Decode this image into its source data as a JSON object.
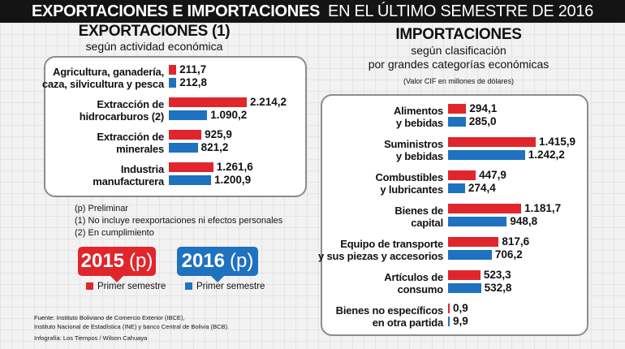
{
  "header": {
    "title_bold": "EXPORTACIONES  E IMPORTACIONES",
    "title_rest": "EN EL ÚLTIMO SEMESTRE DE 2016"
  },
  "exports": {
    "heading": "EXPORTACIONES (1)",
    "subheading": "según actividad económica"
  },
  "imports": {
    "heading": "IMPORTACIONES",
    "subheading1": "según clasificación",
    "subheading2": "por grandes categorías económicas",
    "note": "(Valor CIF en millones de dólares)"
  },
  "notes": [
    "(p) Preliminar",
    "(1) No incluye reexportaciones ni efectos personales",
    "(2) En cumplimiento"
  ],
  "legend": {
    "y2015": "2015",
    "y2016": "2016",
    "p": "(p)",
    "label": "Primer semestre",
    "color2015": "#e0262c",
    "color2016": "#1f72bf"
  },
  "sources": {
    "line1": "Fuente: Instituto Boliviano de Comercio Exterior (IBCE),",
    "line2": "Instituto Nacional de Estadística (INE) y banco Central de Bolivia (BCB).",
    "line3": "Infografía: Los Tiempos / Wilson Cahuaya"
  },
  "chart_data": [
    {
      "type": "bar",
      "title": "EXPORTACIONES (1)",
      "subtitle": "según actividad económica",
      "categories": [
        [
          "Agricultura, ganadería,",
          "caza, silvicultura y pesca"
        ],
        [
          "Extracción de",
          "hidrocarburos (2)"
        ],
        [
          "Extracción de",
          "minerales"
        ],
        [
          "Industria",
          "manufacturera"
        ]
      ],
      "series": [
        {
          "name": "2015 (p) Primer semestre",
          "color": "#e0262c",
          "values": [
            211.7,
            2214.2,
            925.9,
            1261.6
          ],
          "labels": [
            "211,7",
            "2.214,2",
            "925,9",
            "1.261,6"
          ]
        },
        {
          "name": "2016 (p) Primer semestre",
          "color": "#1f72bf",
          "values": [
            212.8,
            1090.2,
            821.2,
            1200.9
          ],
          "labels": [
            "212,8",
            "1.090,2",
            "821,2",
            "1.200,9"
          ]
        }
      ]
    },
    {
      "type": "bar",
      "title": "IMPORTACIONES",
      "subtitle": "según clasificación por grandes categorías económicas",
      "categories": [
        [
          "Alimentos",
          "y bebidas"
        ],
        [
          "Suministros",
          "y bebidas"
        ],
        [
          "Combustibles",
          "y lubricantes"
        ],
        [
          "Bienes de",
          "capital"
        ],
        [
          "Equipo de transporte",
          "y sus piezas y accesorios"
        ],
        [
          "Artículos de",
          "consumo"
        ],
        [
          "Bienes no específicos",
          "en otra partida"
        ]
      ],
      "series": [
        {
          "name": "2015 (p) Primer semestre",
          "color": "#e0262c",
          "values": [
            294.1,
            1415.9,
            447.9,
            1181.7,
            817.6,
            523.3,
            0.9
          ],
          "labels": [
            "294,1",
            "1.415,9",
            "447,9",
            "1.181,7",
            "817,6",
            "523,3",
            "0,9"
          ]
        },
        {
          "name": "2016 (p) Primer semestre",
          "color": "#1f72bf",
          "values": [
            285.0,
            1242.2,
            274.4,
            948.8,
            706.2,
            532.8,
            9.9
          ],
          "labels": [
            "285,0",
            "1.242,2",
            "274,4",
            "948,8",
            "706,2",
            "532,8",
            "9,9"
          ]
        }
      ]
    }
  ]
}
